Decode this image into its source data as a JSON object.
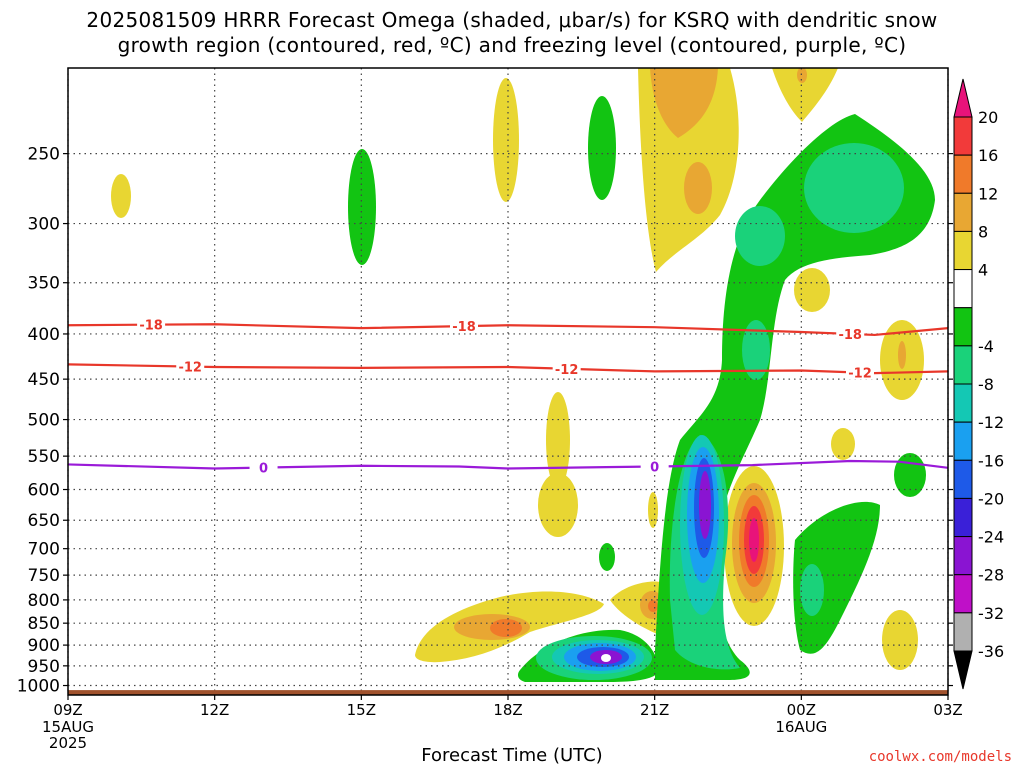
{
  "title_line1": "2025081509 HRRR Forecast Omega (shaded, μbar/s) for KSRQ with dendritic snow",
  "title_line2": "growth region (contoured, red, ºC) and freezing level (contoured, purple, ºC)",
  "credit": "coolwx.com/models",
  "colors": {
    "dgz": "#e8372a",
    "freezing": "#9a1ad8",
    "terrain": "#a0522d",
    "grid": "#444444"
  },
  "chart_data": {
    "type": "heatmap",
    "xlabel": "Forecast Time (UTC)",
    "x_range_hours": [
      9,
      27
    ],
    "x_ticks": [
      {
        "h": 9,
        "label": "09Z",
        "sub": [
          "15AUG",
          "2025"
        ]
      },
      {
        "h": 12,
        "label": "12Z",
        "sub": []
      },
      {
        "h": 15,
        "label": "15Z",
        "sub": []
      },
      {
        "h": 18,
        "label": "18Z",
        "sub": []
      },
      {
        "h": 21,
        "label": "21Z",
        "sub": []
      },
      {
        "h": 24,
        "label": "00Z",
        "sub": [
          "16AUG"
        ]
      },
      {
        "h": 27,
        "label": "03Z",
        "sub": []
      }
    ],
    "y_ticks": [
      250,
      300,
      350,
      400,
      450,
      500,
      550,
      600,
      650,
      700,
      750,
      800,
      850,
      900,
      950,
      1000
    ],
    "y_range_hPa": [
      200,
      1025
    ],
    "y_scale": "log",
    "colorbar": {
      "levels": [
        {
          "label": "20",
          "color": "#e8137a"
        },
        {
          "label": "16",
          "color": "#f23a3a"
        },
        {
          "label": "12",
          "color": "#f07a2a"
        },
        {
          "label": "8",
          "color": "#e8a733"
        },
        {
          "label": "4",
          "color": "#e8d632"
        },
        {
          "label": "",
          "color": "#ffffff"
        },
        {
          "label": "-4",
          "color": "#12c412"
        },
        {
          "label": "-8",
          "color": "#1ad27a"
        },
        {
          "label": "-12",
          "color": "#14c8b4"
        },
        {
          "label": "-16",
          "color": "#1aa0f0"
        },
        {
          "label": "-20",
          "color": "#1e5ae8"
        },
        {
          "label": "-24",
          "color": "#3a20d8"
        },
        {
          "label": "-28",
          "color": "#8a14d2"
        },
        {
          "label": "-32",
          "color": "#bf10c8"
        },
        {
          "label": "",
          "color": "#b0b0b0"
        },
        {
          "label": "-36",
          "color": "#000000"
        }
      ]
    },
    "contours": [
      {
        "name": "-18",
        "kind": "dgz",
        "points": [
          [
            9,
            391
          ],
          [
            12,
            390
          ],
          [
            15,
            394
          ],
          [
            18,
            391
          ],
          [
            21,
            393
          ],
          [
            24,
            398
          ],
          [
            25.5,
            401
          ],
          [
            27,
            394
          ]
        ],
        "labels": [
          [
            10.7,
            "-18"
          ],
          [
            17.1,
            "-18"
          ],
          [
            25.0,
            "-18"
          ]
        ]
      },
      {
        "name": "-12",
        "kind": "dgz",
        "points": [
          [
            9,
            433
          ],
          [
            12,
            436
          ],
          [
            15,
            437
          ],
          [
            18,
            436
          ],
          [
            21,
            441
          ],
          [
            24,
            440
          ],
          [
            25.5,
            443
          ],
          [
            27,
            441
          ]
        ],
        "labels": [
          [
            11.5,
            "-12"
          ],
          [
            19.2,
            "-12"
          ],
          [
            25.2,
            "-12"
          ]
        ]
      },
      {
        "name": "0",
        "kind": "freezing",
        "points": [
          [
            9,
            562
          ],
          [
            12,
            568
          ],
          [
            15,
            564
          ],
          [
            17,
            565
          ],
          [
            18,
            568
          ],
          [
            20,
            566
          ],
          [
            21,
            565
          ],
          [
            23,
            563
          ],
          [
            25,
            557
          ],
          [
            26,
            558
          ],
          [
            27,
            567
          ]
        ],
        "labels": [
          [
            13.0,
            "0"
          ],
          [
            21.0,
            "0"
          ]
        ]
      }
    ],
    "omega_features": [
      {
        "h": 22.0,
        "p": 680,
        "value": -26,
        "desc": "upward motion core"
      },
      {
        "h": 23.0,
        "p": 725,
        "value": 18,
        "desc": "downward motion core"
      },
      {
        "h": 20.0,
        "p": 960,
        "value": -32,
        "desc": "upward motion core"
      },
      {
        "h": 18.0,
        "p": 880,
        "value": 10,
        "desc": "downward motion"
      },
      {
        "h": 21.0,
        "p": 225,
        "value": 8,
        "desc": "downward motion aloft"
      },
      {
        "h": 25.0,
        "p": 270,
        "value": -10,
        "desc": "upward motion aloft"
      }
    ]
  }
}
